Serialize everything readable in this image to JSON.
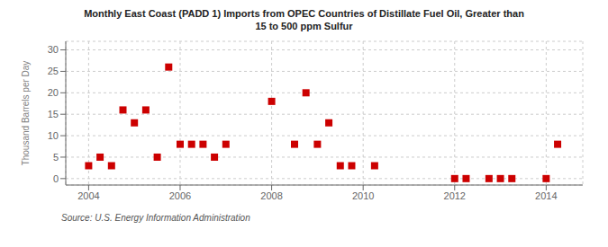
{
  "chart_data": {
    "type": "scatter",
    "title": "Monthly East Coast (PADD 1) Imports from OPEC Countries of Distillate Fuel Oil, Greater than\n15 to 500 ppm Sulfur",
    "y_label": "Thousand Barrels per Day",
    "annotations": [
      "Source: U.S. Energy Information Administration"
    ],
    "color": "#cc0000",
    "marker": "square",
    "grid": true,
    "xlim": [
      2003.5,
      2014.8
    ],
    "ylim": [
      -1.5,
      32
    ],
    "xticks": [
      2004,
      2006,
      2008,
      2010,
      2012,
      2014
    ],
    "yticks": [
      0,
      5,
      10,
      15,
      20,
      25,
      30
    ],
    "x": [
      2004.0,
      2004.25,
      2004.5,
      2004.75,
      2005.0,
      2005.25,
      2005.5,
      2005.75,
      2006.0,
      2006.25,
      2006.5,
      2006.75,
      2007.0,
      2008.0,
      2008.5,
      2008.75,
      2009.0,
      2009.25,
      2009.5,
      2009.75,
      2010.25,
      2012.0,
      2012.25,
      2012.75,
      2013.0,
      2013.25,
      2014.0,
      2014.25
    ],
    "values": [
      3,
      5,
      3,
      16,
      13,
      16,
      5,
      26,
      8,
      8,
      8,
      5,
      8,
      18,
      8,
      20,
      8,
      13,
      3,
      3,
      3,
      0,
      0,
      0,
      0,
      0,
      0,
      8
    ]
  }
}
